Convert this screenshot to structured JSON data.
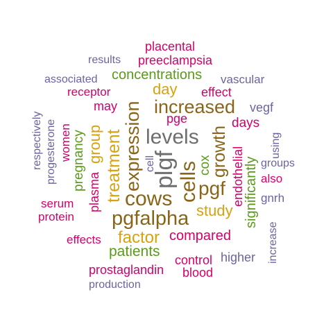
{
  "colors": {
    "magenta": "#d4006a",
    "slate": "#6a64a0",
    "green": "#5a9a1a",
    "brown": "#8a6418",
    "gold": "#d7a20f",
    "gray": "#6e6e6e"
  },
  "words": {
    "placental": "placental",
    "preeclampsia": "preeclampsia",
    "results": "results",
    "concentrations": "concentrations",
    "associated": "associated",
    "vascular": "vascular",
    "receptor": "receptor",
    "day": "day",
    "effect": "effect",
    "may": "may",
    "increased": "increased",
    "vegf": "vegf",
    "pge": "pge",
    "days": "days",
    "levels": "levels",
    "plgf": "plgf",
    "cells": "cells",
    "pgf": "pgf",
    "cows": "cows",
    "study": "study",
    "pgfalpha": "pgfalpha",
    "factor": "factor",
    "compared": "compared",
    "effects": "effects",
    "patients": "patients",
    "control": "control",
    "higher": "higher",
    "prostaglandin": "prostaglandin",
    "blood": "blood",
    "production": "production",
    "serum": "serum",
    "protein": "protein",
    "also": "also",
    "groups": "groups",
    "gnrh": "gnrh",
    "respectively": "respectively",
    "progesterone": "progesterone",
    "women": "women",
    "pregnancy": "pregnancy",
    "group": "group",
    "plasma": "plasma",
    "treatment": "treatment",
    "expression": "expression",
    "cell": "cell",
    "cox": "cox",
    "growth": "growth",
    "endothelial": "endothelial",
    "significantly": "significantly",
    "using": "using",
    "increase": "increase"
  }
}
